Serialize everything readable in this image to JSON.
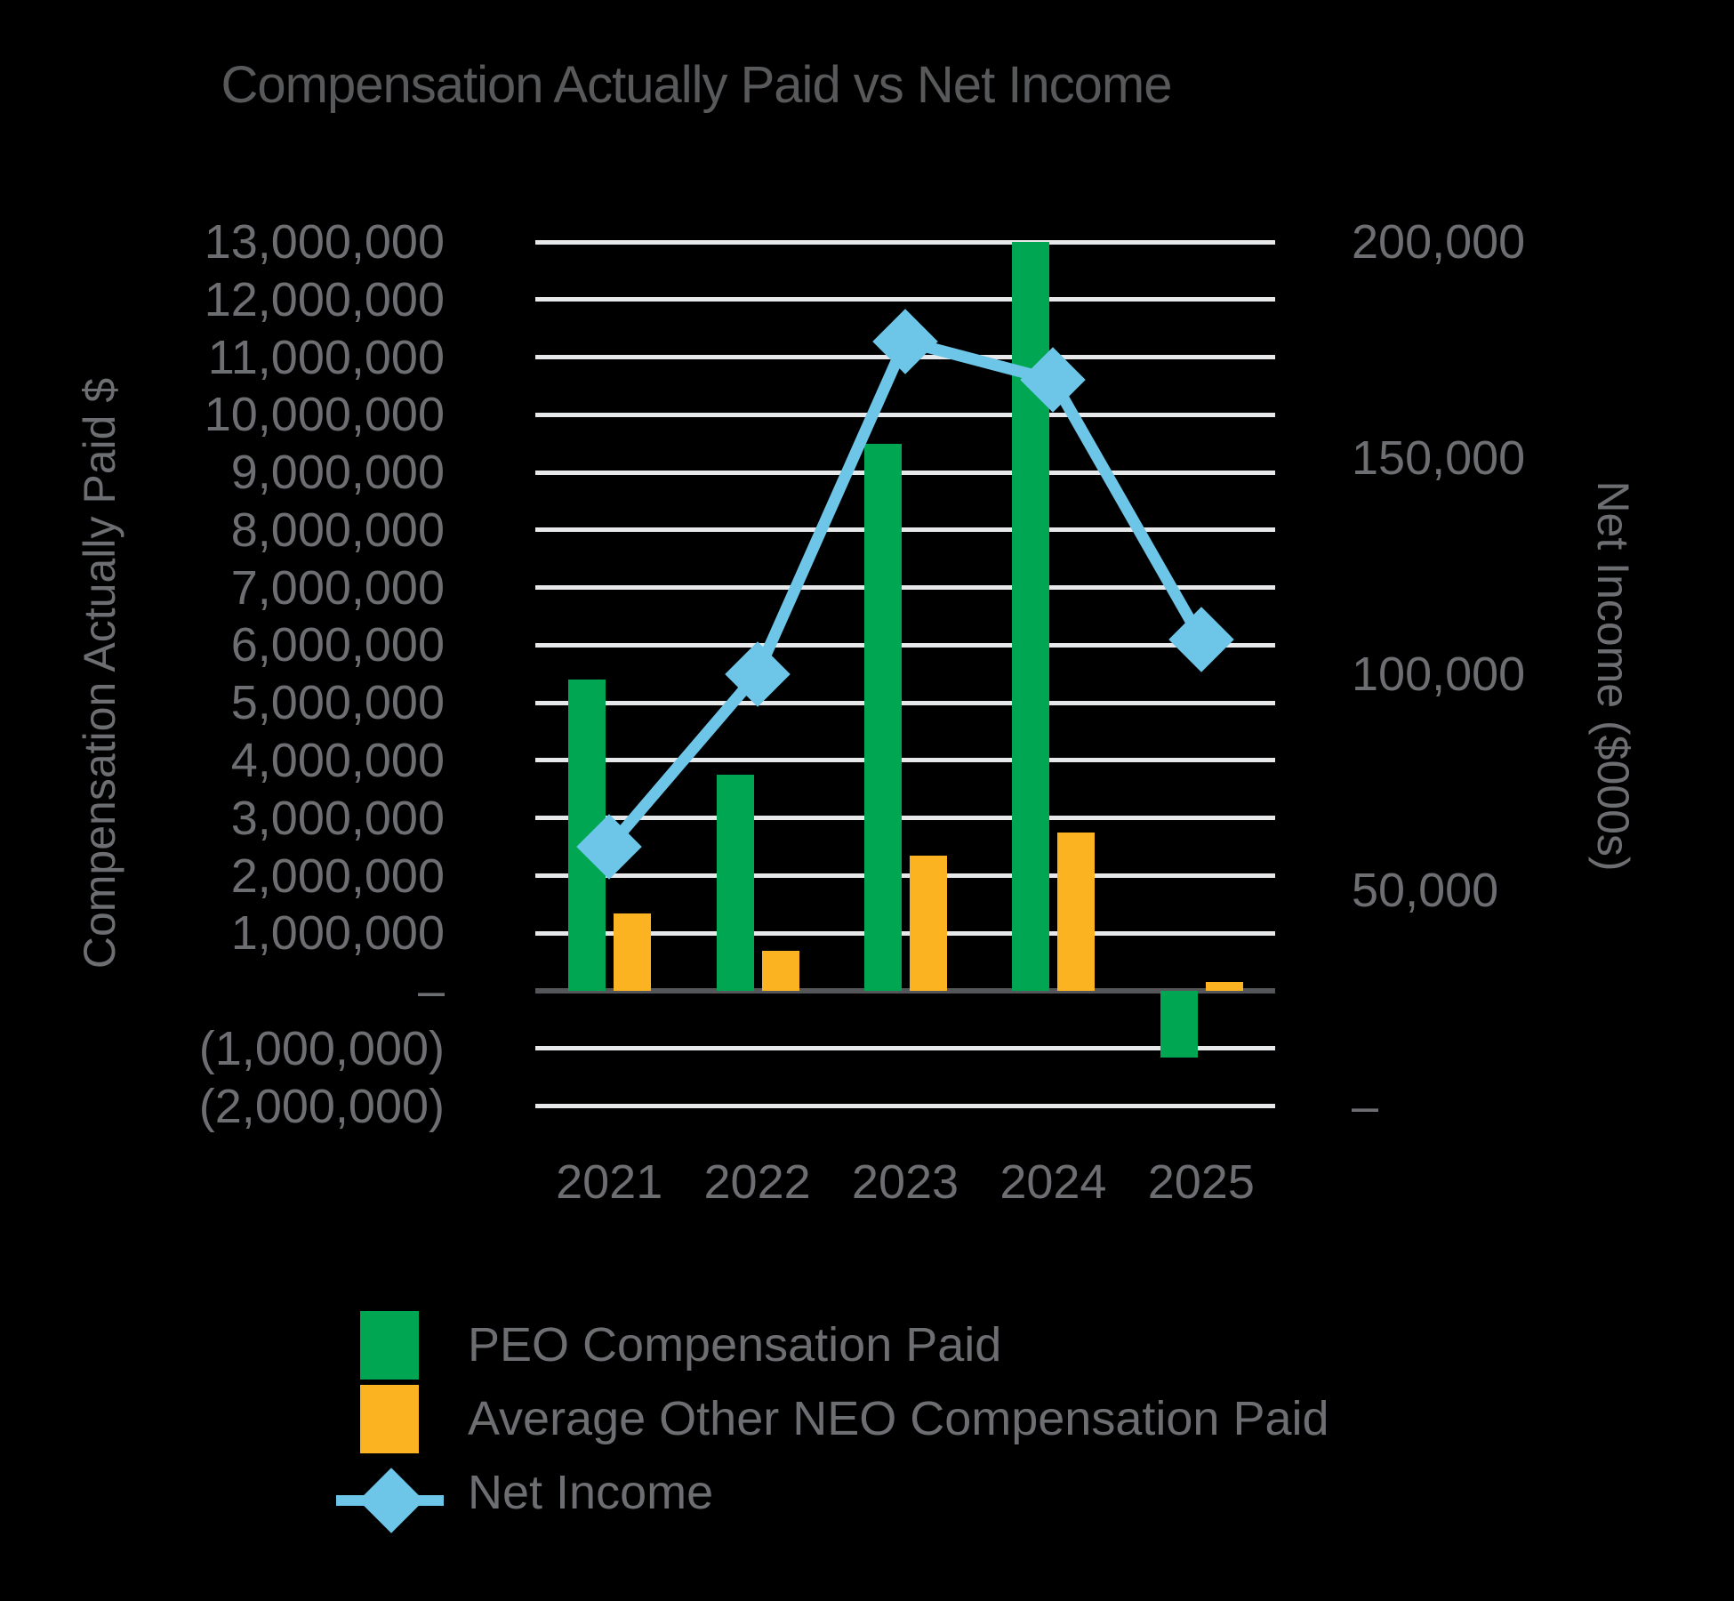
{
  "title": "Compensation Actually Paid vs Net Income",
  "colors": {
    "background": "#000000",
    "gridline": "#E7E8E9",
    "zero_line": "#55565A",
    "text_gray": "#6D6E71",
    "title_gray": "#58595B",
    "peo_green": "#00A651",
    "neo_yellow": "#FBB321",
    "net_income_blue": "#6DC5E8"
  },
  "chart_data": {
    "type": "bar",
    "subtype": "combo-bar-line-dual-axis",
    "title": "Compensation Actually Paid vs Net Income",
    "categories": [
      "2021",
      "2022",
      "2023",
      "2024",
      "2025"
    ],
    "series": [
      {
        "name": "PEO Compensation Paid",
        "type": "bar",
        "axis": "left",
        "color": "#00A651",
        "values": [
          5400000,
          3750000,
          9500000,
          13000000,
          -1150000
        ],
        "note": "2024 bar is clipped at the left-axis maximum of 13,000,000"
      },
      {
        "name": "Average Other NEO Compensation Paid",
        "type": "bar",
        "axis": "left",
        "color": "#FBB321",
        "values": [
          1350000,
          700000,
          2350000,
          2750000,
          150000
        ]
      },
      {
        "name": "Net Income",
        "type": "line",
        "axis": "right",
        "marker": "diamond",
        "color": "#6DC5E8",
        "values": [
          60000,
          100000,
          177000,
          168000,
          108000
        ]
      }
    ],
    "axes": {
      "left": {
        "title": "Compensation Actually Paid $",
        "min": -2000000,
        "max": 13000000,
        "step": 1000000,
        "tick_labels": [
          "13,000,000",
          "12,000,000",
          "11,000,000",
          "10,000,000",
          "9,000,000",
          "8,000,000",
          "7,000,000",
          "6,000,000",
          "5,000,000",
          "4,000,000",
          "3,000,000",
          "2,000,000",
          "1,000,000",
          "–",
          "(1,000,000)",
          "(2,000,000)"
        ]
      },
      "right": {
        "title": "Net Income ($000s)",
        "min": 0,
        "max": 200000,
        "step": 50000,
        "tick_labels": [
          "200,000",
          "150,000",
          "100,000",
          "50,000",
          "–"
        ]
      }
    },
    "grid": true,
    "legend_position": "bottom-left"
  }
}
